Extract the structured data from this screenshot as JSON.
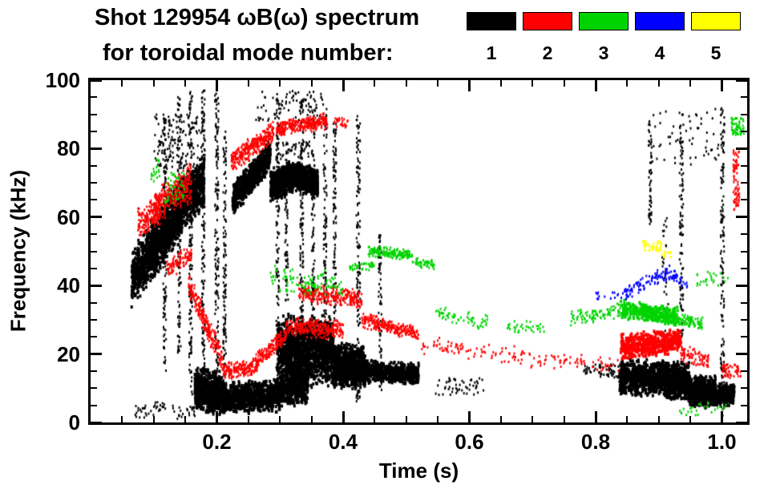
{
  "chart_data": {
    "type": "scatter",
    "title_line1": "Shot 129954 ωB(ω) spectrum",
    "title_line2": "for toroidal mode number:",
    "xlabel": "Time (s)",
    "ylabel": "Frequency (kHz)",
    "xlim": [
      0.0,
      1.04
    ],
    "ylim": [
      0,
      100
    ],
    "xticks": [
      0.2,
      0.4,
      0.6,
      0.8,
      1.0
    ],
    "xtick_labels": [
      "0.2",
      "0.4",
      "0.6",
      "0.8",
      "1.0"
    ],
    "xtick_minor_step": 0.05,
    "yticks": [
      0,
      20,
      40,
      60,
      80,
      100
    ],
    "ytick_labels": [
      "0",
      "20",
      "40",
      "60",
      "80",
      "100"
    ],
    "ytick_minor_step": 5,
    "grid": false,
    "legend_position": "top-right",
    "legend": [
      {
        "label": "1",
        "color": "#000000"
      },
      {
        "label": "2",
        "color": "#ff0000"
      },
      {
        "label": "3",
        "color": "#00d400"
      },
      {
        "label": "4",
        "color": "#0000ff"
      },
      {
        "label": "5",
        "color": "#ffff00"
      }
    ],
    "clusters_key": "m=toroidal mode number, t=[t0,t1] s, f=[f0,f1] kHz band center at t0/t1 (or uniform bounds when u=1), s=half-spread kHz, n=point count, p=point px",
    "clusters": [
      {
        "m": 1,
        "t": [
          0.065,
          0.105
        ],
        "f": [
          42,
          52
        ],
        "s": 9,
        "n": 500,
        "p": 3
      },
      {
        "m": 1,
        "t": [
          0.095,
          0.145
        ],
        "f": [
          50,
          63
        ],
        "s": 10,
        "n": 800,
        "p": 3
      },
      {
        "m": 1,
        "t": [
          0.13,
          0.18
        ],
        "f": [
          62,
          70
        ],
        "s": 8,
        "n": 800,
        "p": 3
      },
      {
        "m": 1,
        "t": [
          0.1,
          0.18
        ],
        "f": [
          74,
          90
        ],
        "u": 1,
        "n": 150
      },
      {
        "m": 1,
        "t": [
          0.165,
          0.21
        ],
        "f": [
          10,
          8
        ],
        "s": 7,
        "n": 700,
        "p": 3
      },
      {
        "m": 1,
        "t": [
          0.21,
          0.3
        ],
        "f": [
          7,
          8
        ],
        "s": 5,
        "n": 900,
        "p": 3
      },
      {
        "m": 1,
        "t": [
          0.3,
          0.345
        ],
        "f": [
          10,
          11
        ],
        "s": 6,
        "n": 500,
        "p": 3
      },
      {
        "m": 1,
        "t": [
          0.296,
          0.385
        ],
        "f": [
          21,
          21
        ],
        "s": 11,
        "n": 1400,
        "p": 3
      },
      {
        "m": 1,
        "t": [
          0.385,
          0.435
        ],
        "f": [
          17,
          16
        ],
        "s": 7,
        "n": 800,
        "p": 3
      },
      {
        "m": 1,
        "t": [
          0.43,
          0.52
        ],
        "f": [
          15,
          14
        ],
        "s": 3.5,
        "n": 600,
        "p": 3
      },
      {
        "m": 1,
        "t": [
          0.225,
          0.285
        ],
        "f": [
          65,
          78
        ],
        "s": 5,
        "n": 650,
        "p": 3
      },
      {
        "m": 1,
        "t": [
          0.285,
          0.325
        ],
        "f": [
          69,
          72
        ],
        "s": 5,
        "n": 650,
        "p": 3
      },
      {
        "m": 1,
        "t": [
          0.325,
          0.36
        ],
        "f": [
          72,
          70
        ],
        "s": 4.5,
        "n": 550,
        "p": 3
      },
      {
        "m": 1,
        "t": [
          0.3,
          0.35
        ],
        "f": [
          77,
          82
        ],
        "u": 1,
        "n": 40
      },
      {
        "m": 1,
        "t": [
          0.26,
          0.37
        ],
        "f": [
          88,
          97
        ],
        "u": 1,
        "n": 90
      },
      {
        "m": 1,
        "t": [
          0.838,
          0.908
        ],
        "f": [
          13,
          13
        ],
        "s": 5.5,
        "n": 750,
        "p": 3
      },
      {
        "m": 1,
        "t": [
          0.908,
          0.948
        ],
        "f": [
          12,
          12
        ],
        "s": 6,
        "n": 650,
        "p": 3
      },
      {
        "m": 1,
        "t": [
          0.948,
          0.99
        ],
        "f": [
          9,
          9
        ],
        "s": 5,
        "n": 600,
        "p": 3
      },
      {
        "m": 1,
        "t": [
          0.99,
          1.02
        ],
        "f": [
          8,
          8
        ],
        "s": 3.5,
        "n": 250,
        "p": 3
      },
      {
        "m": 1,
        "t": [
          0.805,
          0.84
        ],
        "f": [
          13,
          17
        ],
        "u": 1,
        "n": 45
      },
      {
        "m": 1,
        "t": [
          0.885,
          0.995
        ],
        "f": [
          75,
          92
        ],
        "u": 1,
        "n": 55
      },
      {
        "m": 1,
        "t": [
          0.545,
          0.625
        ],
        "f": [
          8,
          13
        ],
        "u": 1,
        "n": 50
      },
      {
        "m": 1,
        "t": [
          0.78,
          0.8
        ],
        "f": [
          14,
          17
        ],
        "u": 1,
        "n": 18
      },
      {
        "m": 1,
        "t": [
          0.07,
          0.12
        ],
        "f": [
          1,
          6
        ],
        "u": 1,
        "n": 35
      },
      {
        "m": 1,
        "t": [
          0.13,
          0.165
        ],
        "f": [
          1,
          5
        ],
        "u": 1,
        "n": 25
      },
      {
        "m": 1,
        "t": [
          0.115,
          0.12
        ],
        "f": [
          15,
          90
        ],
        "u": 1,
        "n": 120
      },
      {
        "m": 1,
        "t": [
          0.138,
          0.143
        ],
        "f": [
          20,
          95
        ],
        "u": 1,
        "n": 120
      },
      {
        "m": 1,
        "t": [
          0.156,
          0.161
        ],
        "f": [
          8,
          97
        ],
        "u": 1,
        "n": 140
      },
      {
        "m": 1,
        "t": [
          0.176,
          0.181
        ],
        "f": [
          5,
          97
        ],
        "u": 1,
        "n": 150
      },
      {
        "m": 1,
        "t": [
          0.197,
          0.203
        ],
        "f": [
          3,
          97
        ],
        "u": 1,
        "n": 170
      },
      {
        "m": 1,
        "t": [
          0.21,
          0.215
        ],
        "f": [
          3,
          85
        ],
        "u": 1,
        "n": 130
      },
      {
        "m": 1,
        "t": [
          0.294,
          0.299
        ],
        "f": [
          10,
          95
        ],
        "u": 1,
        "n": 140
      },
      {
        "m": 1,
        "t": [
          0.308,
          0.313
        ],
        "f": [
          35,
          80
        ],
        "u": 1,
        "n": 70
      },
      {
        "m": 1,
        "t": [
          0.332,
          0.337
        ],
        "f": [
          12,
          95
        ],
        "u": 1,
        "n": 140
      },
      {
        "m": 1,
        "t": [
          0.35,
          0.355
        ],
        "f": [
          20,
          90
        ],
        "u": 1,
        "n": 110
      },
      {
        "m": 1,
        "t": [
          0.369,
          0.374
        ],
        "f": [
          15,
          92
        ],
        "u": 1,
        "n": 120
      },
      {
        "m": 1,
        "t": [
          0.384,
          0.389
        ],
        "f": [
          30,
          88
        ],
        "u": 1,
        "n": 90
      },
      {
        "m": 1,
        "t": [
          0.421,
          0.427
        ],
        "f": [
          6,
          90
        ],
        "u": 1,
        "n": 140
      },
      {
        "m": 1,
        "t": [
          0.456,
          0.461
        ],
        "f": [
          8,
          55
        ],
        "u": 1,
        "n": 70
      },
      {
        "m": 1,
        "t": [
          0.884,
          0.889
        ],
        "f": [
          58,
          88
        ],
        "u": 1,
        "n": 55
      },
      {
        "m": 1,
        "t": [
          0.933,
          0.939
        ],
        "f": [
          25,
          90
        ],
        "u": 1,
        "n": 100
      },
      {
        "m": 1,
        "t": [
          0.998,
          1.004
        ],
        "f": [
          2,
          92
        ],
        "u": 1,
        "n": 150
      },
      {
        "m": 1,
        "t": [
          0.905,
          0.915
        ],
        "f": [
          25,
          60
        ],
        "u": 1,
        "n": 30
      },
      {
        "m": 2,
        "t": [
          0.075,
          0.11
        ],
        "f": [
          58,
          62
        ],
        "s": 5,
        "n": 170
      },
      {
        "m": 2,
        "t": [
          0.1,
          0.16
        ],
        "f": [
          63,
          70
        ],
        "s": 6,
        "n": 300
      },
      {
        "m": 2,
        "t": [
          0.12,
          0.16
        ],
        "f": [
          45,
          49
        ],
        "s": 3.5,
        "n": 90
      },
      {
        "m": 2,
        "t": [
          0.155,
          0.21
        ],
        "f": [
          40,
          18
        ],
        "s": 4,
        "n": 220
      },
      {
        "m": 2,
        "t": [
          0.21,
          0.26
        ],
        "f": [
          15,
          16
        ],
        "s": 3,
        "n": 160
      },
      {
        "m": 2,
        "t": [
          0.26,
          0.31
        ],
        "f": [
          17,
          26
        ],
        "s": 3,
        "n": 180
      },
      {
        "m": 2,
        "t": [
          0.31,
          0.4
        ],
        "f": [
          28,
          27
        ],
        "s": 3,
        "n": 270
      },
      {
        "m": 2,
        "t": [
          0.33,
          0.43
        ],
        "f": [
          38,
          36
        ],
        "s": 3,
        "n": 280
      },
      {
        "m": 2,
        "t": [
          0.43,
          0.52
        ],
        "f": [
          30,
          26
        ],
        "s": 2.5,
        "n": 240
      },
      {
        "m": 2,
        "t": [
          0.223,
          0.29
        ],
        "f": [
          76,
          85
        ],
        "s": 3.5,
        "n": 300
      },
      {
        "m": 2,
        "t": [
          0.295,
          0.375
        ],
        "f": [
          86,
          88
        ],
        "s": 2.5,
        "n": 280
      },
      {
        "m": 2,
        "t": [
          0.385,
          0.41
        ],
        "f": [
          86,
          89
        ],
        "u": 1,
        "n": 25
      },
      {
        "m": 2,
        "t": [
          0.52,
          0.7
        ],
        "f": [
          23,
          19
        ],
        "s": 3,
        "n": 90
      },
      {
        "m": 2,
        "t": [
          0.7,
          0.84
        ],
        "f": [
          18,
          17
        ],
        "s": 2.5,
        "n": 60
      },
      {
        "m": 2,
        "t": [
          0.84,
          0.935
        ],
        "f": [
          22,
          24
        ],
        "s": 4,
        "n": 520,
        "p": 3
      },
      {
        "m": 2,
        "t": [
          0.935,
          0.98
        ],
        "f": [
          20,
          18
        ],
        "s": 3,
        "n": 80
      },
      {
        "m": 2,
        "t": [
          1.0,
          1.03
        ],
        "f": [
          13,
          17
        ],
        "u": 1,
        "n": 50
      },
      {
        "m": 2,
        "t": [
          1.018,
          1.028
        ],
        "f": [
          62,
          80
        ],
        "u": 1,
        "n": 70
      },
      {
        "m": 3,
        "t": [
          0.095,
          0.11
        ],
        "f": [
          70,
          77
        ],
        "u": 1,
        "n": 20
      },
      {
        "m": 3,
        "t": [
          0.118,
          0.15
        ],
        "f": [
          64,
          74
        ],
        "u": 1,
        "n": 45
      },
      {
        "m": 3,
        "t": [
          0.285,
          0.4
        ],
        "f": [
          42,
          40
        ],
        "s": 4,
        "n": 110
      },
      {
        "m": 3,
        "t": [
          0.41,
          0.45
        ],
        "f": [
          45,
          46
        ],
        "s": 1.5,
        "n": 40
      },
      {
        "m": 3,
        "t": [
          0.44,
          0.51
        ],
        "f": [
          50,
          49
        ],
        "s": 1.8,
        "n": 170
      },
      {
        "m": 3,
        "t": [
          0.51,
          0.545
        ],
        "f": [
          47,
          46
        ],
        "s": 1.5,
        "n": 50
      },
      {
        "m": 3,
        "t": [
          0.545,
          0.63
        ],
        "f": [
          32,
          29
        ],
        "s": 2.5,
        "n": 60
      },
      {
        "m": 3,
        "t": [
          0.66,
          0.72
        ],
        "f": [
          28,
          28
        ],
        "s": 2,
        "n": 35
      },
      {
        "m": 3,
        "t": [
          0.76,
          0.84
        ],
        "f": [
          30,
          33
        ],
        "s": 2.5,
        "n": 90
      },
      {
        "m": 3,
        "t": [
          0.84,
          0.93
        ],
        "f": [
          33,
          31
        ],
        "s": 3,
        "n": 320,
        "p": 3
      },
      {
        "m": 3,
        "t": [
          0.93,
          0.97
        ],
        "f": [
          30,
          29
        ],
        "s": 2,
        "n": 80
      },
      {
        "m": 3,
        "t": [
          0.96,
          1.01
        ],
        "f": [
          40,
          44
        ],
        "u": 1,
        "n": 25
      },
      {
        "m": 3,
        "t": [
          1.015,
          1.035
        ],
        "f": [
          84,
          89
        ],
        "u": 1,
        "n": 60
      },
      {
        "m": 3,
        "t": [
          0.93,
          1.01
        ],
        "f": [
          2,
          6
        ],
        "u": 1,
        "n": 25
      },
      {
        "m": 4,
        "t": [
          0.845,
          0.92
        ],
        "f": [
          38,
          44
        ],
        "s": 2.5,
        "n": 95
      },
      {
        "m": 4,
        "t": [
          0.92,
          0.945
        ],
        "f": [
          43,
          40
        ],
        "s": 2,
        "n": 30
      },
      {
        "m": 4,
        "t": [
          0.8,
          0.845
        ],
        "f": [
          36,
          38
        ],
        "u": 1,
        "n": 15
      },
      {
        "m": 5,
        "t": [
          0.875,
          0.905
        ],
        "f": [
          50,
          53
        ],
        "u": 1,
        "n": 42
      },
      {
        "m": 5,
        "t": [
          0.905,
          0.92
        ],
        "f": [
          48,
          50
        ],
        "u": 1,
        "n": 12
      }
    ]
  }
}
